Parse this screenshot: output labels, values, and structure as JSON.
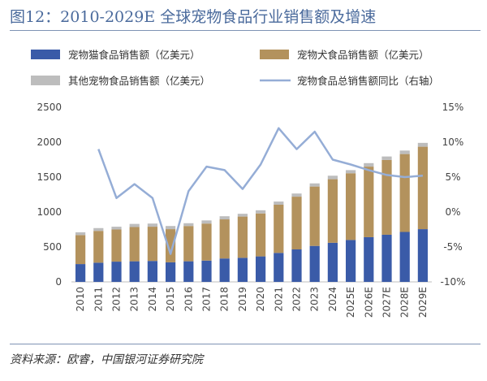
{
  "header": {
    "title": "图12：2010-2029E 全球宠物食品行业销售额及增速"
  },
  "footer": {
    "source": "资料来源：欧睿，中国银河证券研究院"
  },
  "chart_data": {
    "type": "bar",
    "stacked": true,
    "categories": [
      "2010",
      "2011",
      "2012",
      "2013",
      "2014",
      "2015",
      "2016",
      "2017",
      "2018",
      "2019",
      "2020",
      "2021",
      "2022",
      "2023",
      "2024",
      "2025E",
      "2026E",
      "2027E",
      "2028E",
      "2029E"
    ],
    "series": [
      {
        "name": "宠物猫食品销售额（亿美元）",
        "color": "#3a5ba8",
        "axis": "left",
        "values": [
          255,
          275,
          290,
          295,
          300,
          280,
          295,
          305,
          335,
          345,
          365,
          415,
          465,
          515,
          560,
          600,
          640,
          675,
          715,
          755
        ]
      },
      {
        "name": "宠物犬食品销售额（亿美元）",
        "color": "#b3925d",
        "axis": "left",
        "values": [
          415,
          455,
          460,
          490,
          490,
          475,
          505,
          530,
          560,
          590,
          615,
          690,
          755,
          850,
          910,
          955,
          1010,
          1070,
          1115,
          1180
        ]
      },
      {
        "name": "其他宠物食品销售额（亿美元）",
        "color": "#bdbdbd",
        "axis": "left",
        "values": [
          40,
          40,
          40,
          45,
          45,
          45,
          40,
          45,
          45,
          40,
          45,
          45,
          45,
          45,
          50,
          45,
          50,
          50,
          50,
          55
        ]
      },
      {
        "name": "宠物食品总销售额同比（右轴）",
        "type": "line",
        "color": "#95add6",
        "axis": "right",
        "values": [
          null,
          9.0,
          2.0,
          4.0,
          2.0,
          -6.0,
          3.0,
          6.5,
          6.0,
          3.3,
          6.8,
          12.0,
          9.0,
          11.5,
          7.5,
          6.8,
          6.0,
          5.3,
          5.0,
          5.2
        ]
      }
    ],
    "yleft": {
      "ylim": [
        0,
        2500
      ],
      "ticks": [
        "0",
        "500",
        "1000",
        "1500",
        "2000",
        "2500"
      ]
    },
    "yright": {
      "ylim": [
        -10,
        15
      ],
      "ticks": [
        "-10%",
        "-5%",
        "0%",
        "5%",
        "10%",
        "15%"
      ]
    },
    "legend": "top",
    "grid": false
  }
}
